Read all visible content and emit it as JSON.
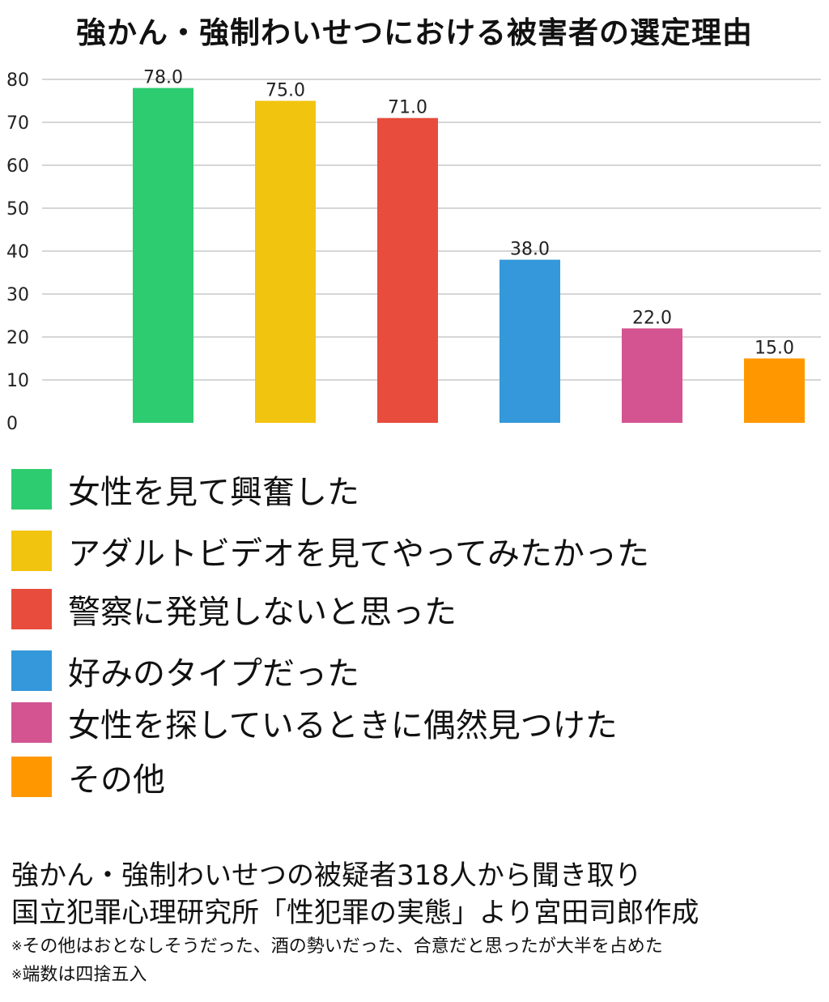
{
  "title": "強かん・強制わいせつにおける被害者の選定理由",
  "chart_data": {
    "type": "bar",
    "title": "強かん・強制わいせつにおける被害者の選定理由",
    "categories": [
      "女性を見て興奮した",
      "アダルトビデオを見てやってみたかった",
      "警察に発覚しないと思った",
      "好みのタイプだった",
      "女性を探しているときに偶然見つけた",
      "その他"
    ],
    "values": [
      78.0,
      75.0,
      71.0,
      38.0,
      22.0,
      15.0
    ],
    "value_labels": [
      "78.0",
      "75.0",
      "71.0",
      "38.0",
      "22.0",
      "15.0"
    ],
    "colors": [
      "#2ecc71",
      "#f1c40f",
      "#e74c3c",
      "#3498db",
      "#d35490",
      "#ff9800"
    ],
    "ylim": [
      0,
      80
    ],
    "yticks": [
      0,
      10,
      20,
      30,
      40,
      50,
      60,
      70,
      80
    ],
    "xlabel": "",
    "ylabel": "",
    "grid": true,
    "legend_position": "bottom"
  },
  "legend": [
    {
      "label": "女性を見て興奮した",
      "color": "#2ecc71"
    },
    {
      "label": "アダルトビデオを見てやってみたかった",
      "color": "#f1c40f"
    },
    {
      "label": "警察に発覚しないと思った",
      "color": "#e74c3c"
    },
    {
      "label": "好みのタイプだった",
      "color": "#3498db"
    },
    {
      "label": "女性を探しているときに偶然見つけた",
      "color": "#d35490"
    },
    {
      "label": "その他",
      "color": "#ff9800"
    }
  ],
  "footer": {
    "source_line1": "強かん・強制わいせつの被疑者318人から聞き取り",
    "source_line2": "国立犯罪心理研究所「性犯罪の実態」より宮田司郎作成",
    "note_mark": "※",
    "note1": "その他はおとなしそうだった、酒の勢いだった、合意だと思ったが大半を占めた",
    "note2": "端数は四捨五入"
  }
}
